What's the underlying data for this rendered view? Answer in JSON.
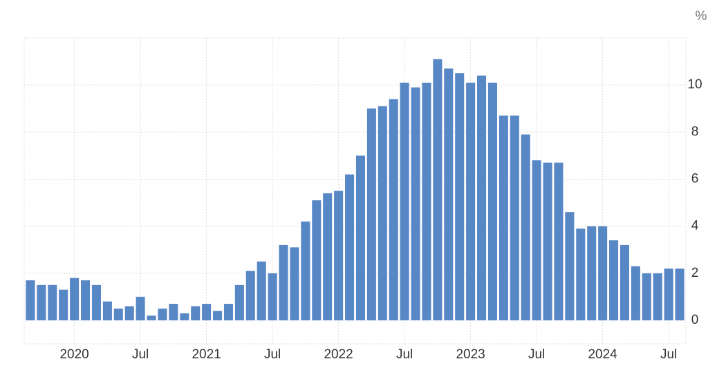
{
  "chart_data": {
    "type": "bar",
    "unit": "%",
    "categories": [
      null,
      null,
      null,
      null,
      "2020",
      null,
      null,
      null,
      null,
      null,
      "Jul",
      null,
      null,
      null,
      null,
      null,
      "2021",
      null,
      null,
      null,
      null,
      null,
      "Jul",
      null,
      null,
      null,
      null,
      null,
      "2022",
      null,
      null,
      null,
      null,
      null,
      "Jul",
      null,
      null,
      null,
      null,
      null,
      "2023",
      null,
      null,
      null,
      null,
      null,
      "Jul",
      null,
      null,
      null,
      null,
      null,
      "2024",
      null,
      null,
      null,
      null,
      null,
      "Jul",
      null
    ],
    "values": [
      1.7,
      1.5,
      1.5,
      1.3,
      1.8,
      1.7,
      1.5,
      0.8,
      0.5,
      0.6,
      1.0,
      0.2,
      0.5,
      0.7,
      0.3,
      0.6,
      0.7,
      0.4,
      0.7,
      1.5,
      2.1,
      2.5,
      2.0,
      3.2,
      3.1,
      4.2,
      5.1,
      5.4,
      5.5,
      6.2,
      7.0,
      9.0,
      9.1,
      9.4,
      10.1,
      9.9,
      10.1,
      11.1,
      10.7,
      10.5,
      10.1,
      10.4,
      10.1,
      8.7,
      8.7,
      7.9,
      6.8,
      6.7,
      6.7,
      4.6,
      3.9,
      4.0,
      4.0,
      3.4,
      3.2,
      2.3,
      2.0,
      2.0,
      2.2,
      2.2
    ],
    "color": "#5787c5",
    "ylim": [
      -1,
      12
    ],
    "yticks": [
      0,
      2,
      4,
      6,
      8,
      10
    ],
    "grid": true
  }
}
